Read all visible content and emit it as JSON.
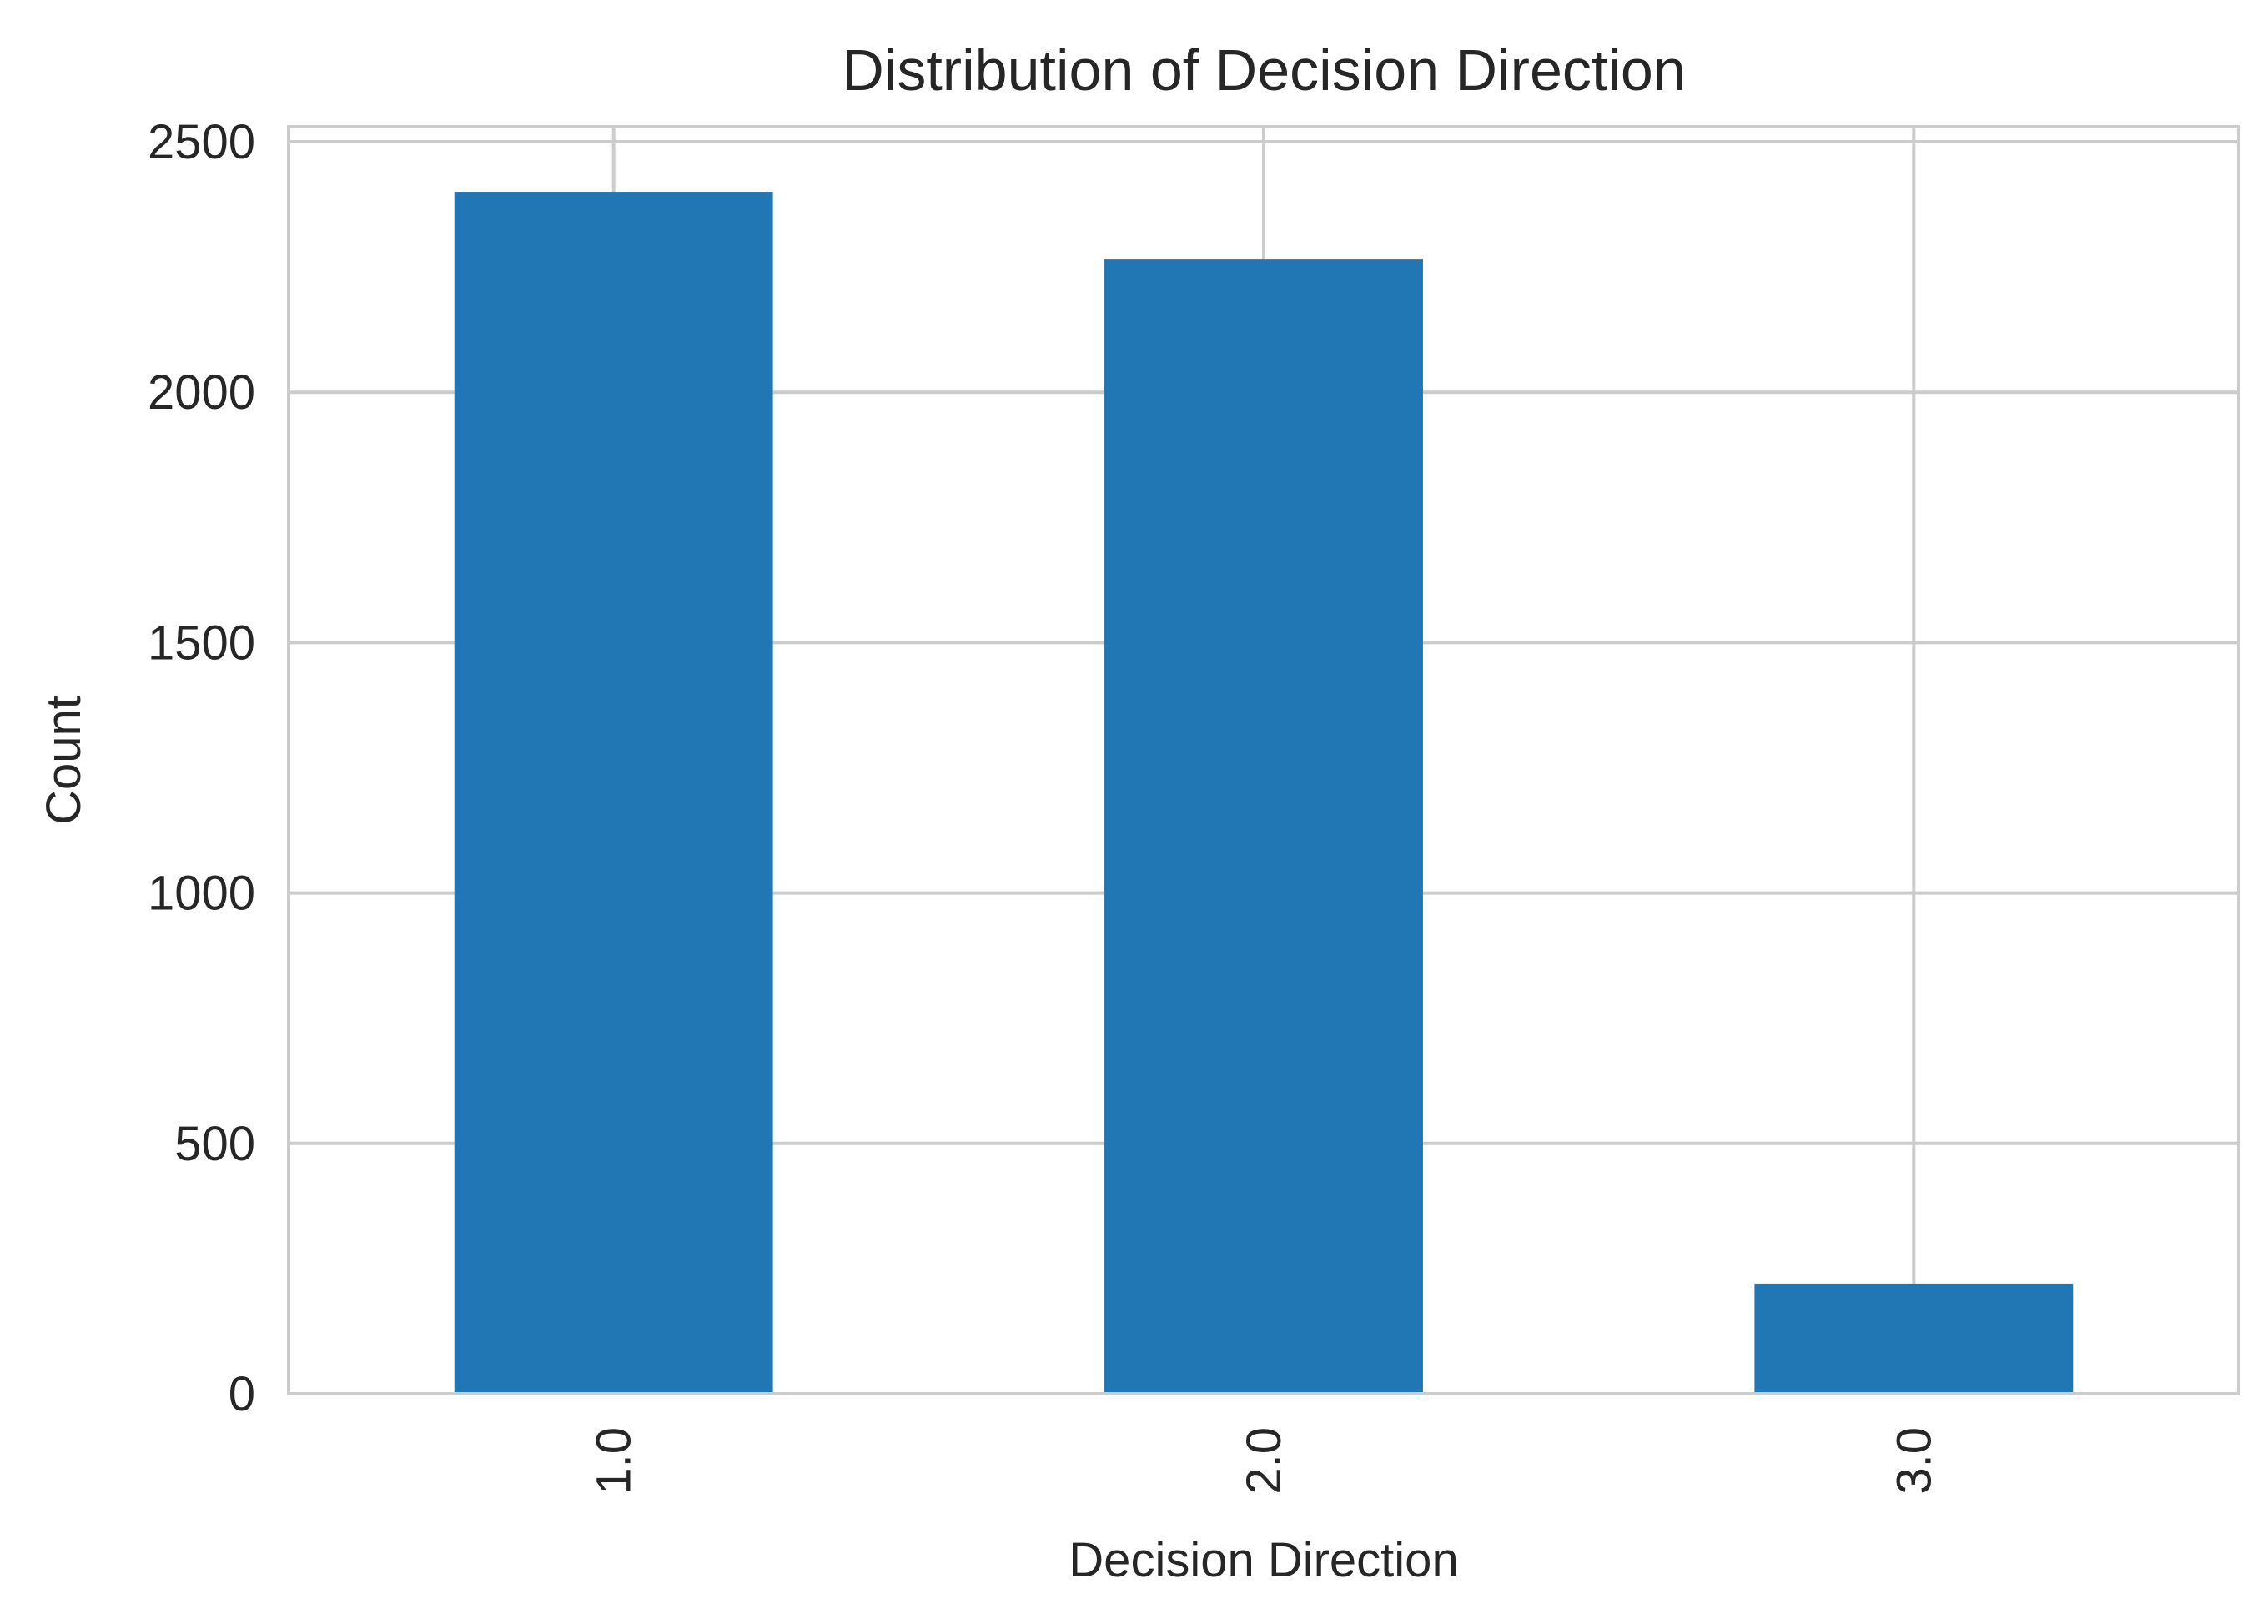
{
  "chart_data": {
    "type": "bar",
    "title": "Distribution of Decision Direction",
    "xlabel": "Decision Direction",
    "ylabel": "Count",
    "categories": [
      "1.0",
      "2.0",
      "3.0"
    ],
    "values": [
      2400,
      2265,
      220
    ],
    "ylim": [
      0,
      2530
    ],
    "yticks": [
      0,
      500,
      1000,
      1500,
      2000,
      2500
    ],
    "ytick_labels": [
      "0",
      "500",
      "1000",
      "1500",
      "2000",
      "2500"
    ],
    "grid": true,
    "bar_color": "#2077b4",
    "grid_color": "#cccccc",
    "x_tick_rotation": "vertical"
  }
}
